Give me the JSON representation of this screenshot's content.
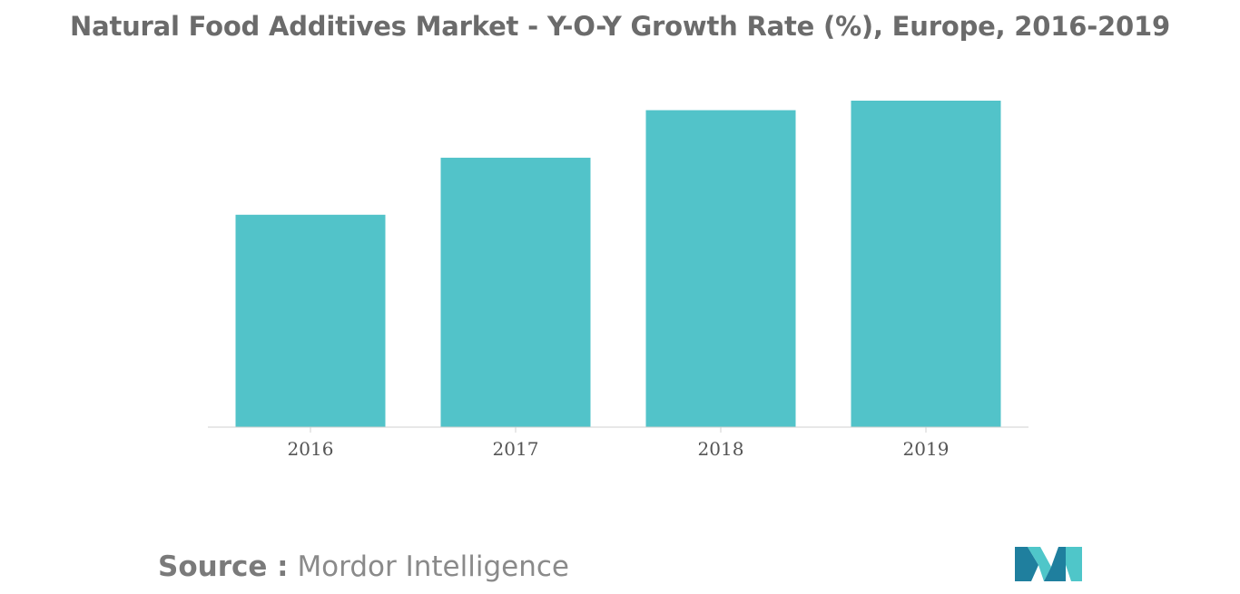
{
  "chart_data": {
    "type": "bar",
    "title": "Natural Food Additives Market - Y-O-Y Growth Rate (%), Europe, 2016-2019",
    "categories": [
      "2016",
      "2017",
      "2018",
      "2019"
    ],
    "values": [
      6.7,
      8.5,
      10.0,
      10.3
    ],
    "xlabel": "",
    "ylabel": "",
    "ylim": [
      0,
      10.5
    ],
    "grid": false,
    "legend": "none",
    "bar_color": "#52c3c9"
  },
  "source": {
    "label": "Source :",
    "value": "Mordor Intelligence"
  },
  "colors": {
    "bar": "#52c3c9",
    "axis": "#d0d0d0",
    "logo_dark": "#1f7f9e",
    "logo_light": "#4fc6c9"
  },
  "logo": {
    "icon": "mordor-intelligence-logo"
  }
}
